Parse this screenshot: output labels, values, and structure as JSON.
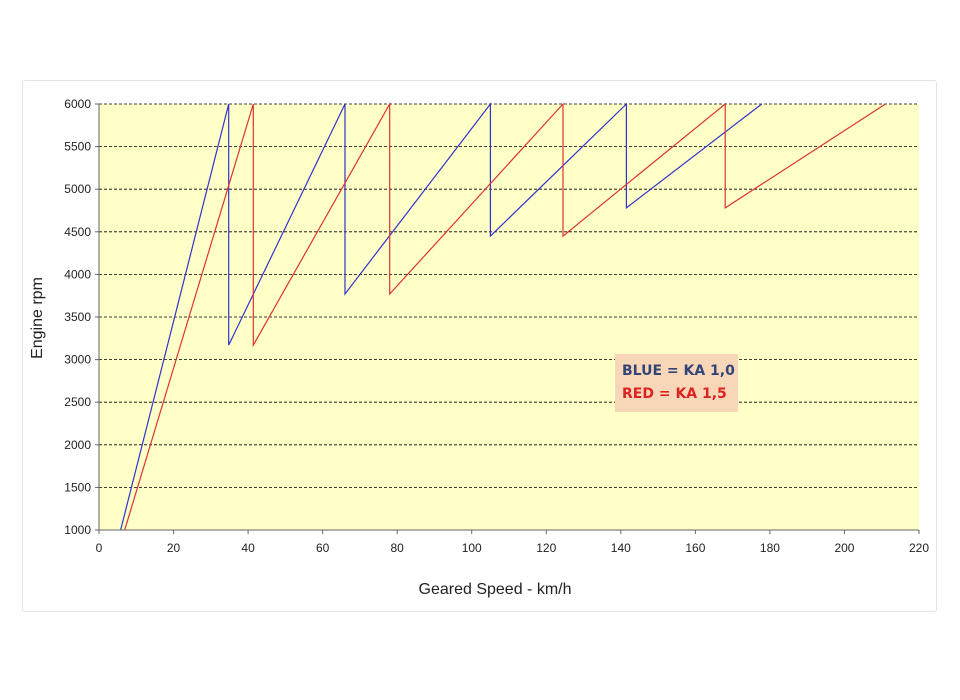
{
  "chart_data": {
    "type": "line",
    "title": "",
    "xlabel": "Geared Speed - km/h",
    "ylabel": "Engine rpm",
    "xlim": [
      0,
      220
    ],
    "ylim": [
      1000,
      6000
    ],
    "x_ticks": [
      0,
      20,
      40,
      60,
      80,
      100,
      120,
      140,
      160,
      180,
      200,
      220
    ],
    "y_ticks": [
      1000,
      1500,
      2000,
      2500,
      3000,
      3500,
      4000,
      4500,
      5000,
      5500,
      6000
    ],
    "grid": "horizontal dashed",
    "plot_background": "#ffffc8",
    "legend_box": {
      "background": "#f8d7b8",
      "placement": "center-right",
      "entries": [
        "BLUE = KA 1,0",
        "RED = KA 1,5"
      ]
    },
    "series": [
      {
        "name": "BLUE = KA 1,0",
        "color": "#3333cc",
        "points": [
          [
            5.8,
            1000
          ],
          [
            34.8,
            6000
          ],
          [
            34.8,
            3170
          ],
          [
            66.0,
            6000
          ],
          [
            66.0,
            3770
          ],
          [
            105.0,
            6000
          ],
          [
            105.0,
            4450
          ],
          [
            141.5,
            6000
          ],
          [
            141.5,
            4780
          ],
          [
            177.8,
            6000
          ]
        ]
      },
      {
        "name": "RED = KA 1,5",
        "color": "#dd3333",
        "points": [
          [
            6.9,
            1000
          ],
          [
            41.4,
            6000
          ],
          [
            41.4,
            3170
          ],
          [
            78.0,
            6000
          ],
          [
            78.0,
            3770
          ],
          [
            124.5,
            6000
          ],
          [
            124.5,
            4450
          ],
          [
            168.0,
            6000
          ],
          [
            168.0,
            4780
          ],
          [
            211.0,
            6000
          ]
        ]
      }
    ]
  }
}
